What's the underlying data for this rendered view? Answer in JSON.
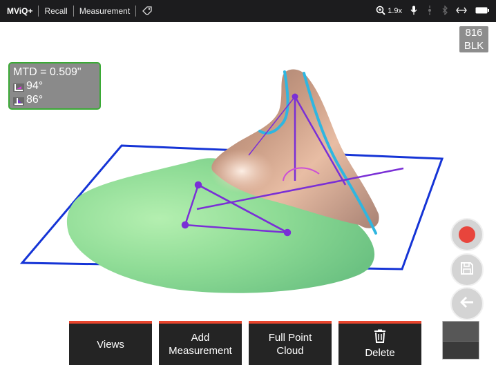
{
  "topbar": {
    "brand": "MViQ+",
    "crumbs": [
      "Recall",
      "Measurement"
    ],
    "zoom": "1.9x",
    "icons": [
      "tag-icon",
      "zoom-in-icon",
      "microphone-icon",
      "focus-icon",
      "bluetooth-icon",
      "link-icon",
      "battery-icon"
    ]
  },
  "serial": {
    "line1": "816",
    "line2": "BLK"
  },
  "measurement": {
    "mtd": "MTD = 0.509\"",
    "angle1": "94°",
    "angle2": "86°",
    "border_color": "#3aaa35"
  },
  "side_buttons": [
    "record-button",
    "save-button",
    "back-button"
  ],
  "toolbar": {
    "views": "Views",
    "add_line1": "Add",
    "add_line2": "Measurement",
    "cloud_line1": "Full Point",
    "cloud_line2": "Cloud",
    "delete": "Delete"
  },
  "colors": {
    "accent": "#e8452d",
    "plane": "#1534d6",
    "edge": "#2fb6e0",
    "measure": "#7a2fd6",
    "record": "#e8453c"
  }
}
